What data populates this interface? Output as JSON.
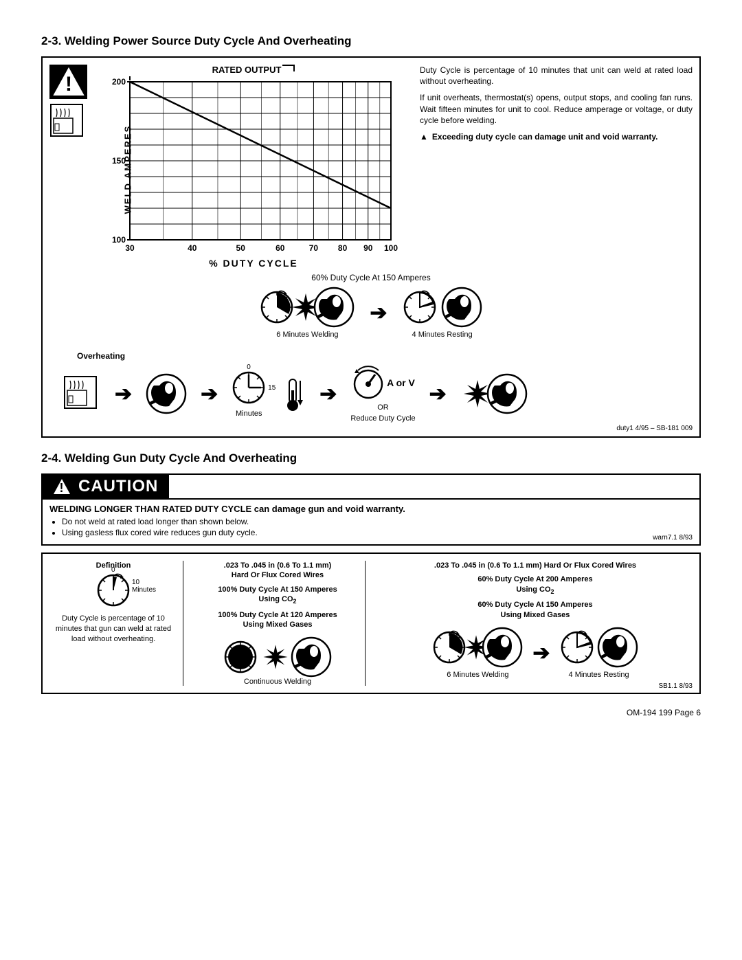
{
  "section1": {
    "heading": "2-3.  Welding Power Source Duty Cycle And Overheating",
    "chart": {
      "type": "line",
      "top_label": "RATED OUTPUT",
      "ylabel": "WELD  AMPERES",
      "xlabel": "%  DUTY  CYCLE",
      "ylim": [
        100,
        200
      ],
      "yticks": [
        100,
        150,
        200
      ],
      "xlim_log": [
        30,
        100
      ],
      "xticks": [
        30,
        40,
        50,
        60,
        70,
        80,
        90,
        100
      ],
      "line_points": [
        [
          30,
          200
        ],
        [
          100,
          120
        ]
      ],
      "line_width": 2.5,
      "grid_color": "#000000",
      "background_color": "#ffffff",
      "font_weight": "bold",
      "title_fontsize": 13,
      "label_fontsize": 13,
      "tick_fontsize": 12
    },
    "side_p1": "Duty Cycle is percentage of 10 minutes that unit can weld at rated load without overheating.",
    "side_p2": "If unit overheats, thermostat(s) opens, output stops, and cooling fan runs. Wait fifteen minutes for unit to cool. Reduce amperage or voltage, or duty cycle before welding.",
    "side_warn": "Exceeding duty cycle can damage unit and void warranty.",
    "example_title": "60% Duty Cycle At 150 Amperes",
    "example_left": "6 Minutes Welding",
    "example_right": "4 Minutes Resting",
    "overheating_label": "Overheating",
    "minutes_0": "0",
    "minutes_15": "15",
    "minutes_word": "Minutes",
    "a_or_v": "A or V",
    "or_word": "OR",
    "reduce_duty": "Reduce Duty Cycle",
    "footnote": "duty1 4/95 – SB-181 009"
  },
  "section2": {
    "heading": "2-4.  Welding Gun Duty Cycle And Overheating",
    "caution_word": "CAUTION",
    "caution_head": "WELDING LONGER THAN RATED DUTY CYCLE can damage gun and void warranty.",
    "caution_b1": "Do not weld at rated load longer than shown below.",
    "caution_b2": "Using gasless flux cored wire reduces gun duty cycle.",
    "caution_fn": "warn7.1 8/93",
    "col1": {
      "h": "Definition",
      "zero": "0",
      "ten": "10",
      "minutes": "Minutes",
      "t": "Duty Cycle is percentage of 10 minutes that gun can weld at rated load without overheating."
    },
    "col2": {
      "h1": ".023 To .045 in (0.6 To 1.1 mm)",
      "h2": "Hard Or Flux Cored Wires",
      "l1a": "100% Duty Cycle At 150 Amperes",
      "l1b": "Using CO",
      "l2a": "100% Duty Cycle At 120 Amperes",
      "l2b": "Using Mixed Gases",
      "cap": "Continuous Welding"
    },
    "col3": {
      "h1": ".023 To .045 in (0.6 To 1.1 mm) Hard Or Flux Cored Wires",
      "l1a": "60% Duty Cycle At 200 Amperes",
      "l1b": "Using CO",
      "l2a": "60% Duty Cycle At 150 Amperes",
      "l2b": "Using Mixed Gases",
      "cap_l": "6 Minutes Welding",
      "cap_r": "4 Minutes Resting"
    },
    "footnote": "SB1.1 8/93"
  },
  "page_footer": "OM-194 199 Page 6"
}
